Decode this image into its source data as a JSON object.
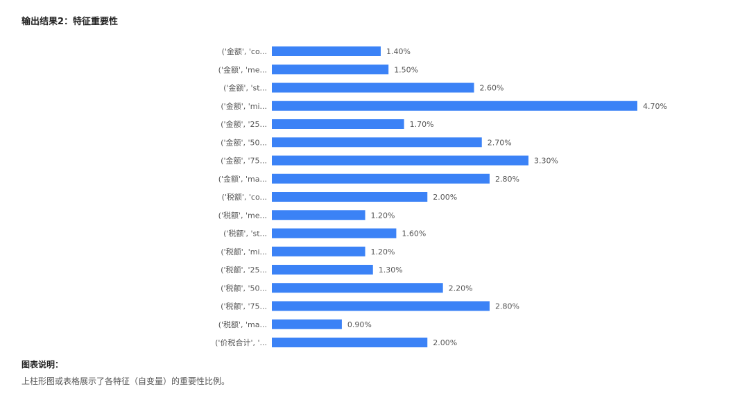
{
  "heading": "输出结果2：特征重要性",
  "chart_data": {
    "type": "bar",
    "orientation": "horizontal",
    "categories": [
      "('金额', 'co...",
      "('金额', 'me...",
      "('金额', 'st...",
      "('金额', 'mi...",
      "('金额', '25...",
      "('金额', '50...",
      "('金额', '75...",
      "('金额', 'ma...",
      "('税额', 'co...",
      "('税额', 'me...",
      "('税额', 'st...",
      "('税额', 'mi...",
      "('税额', '25...",
      "('税额', '50...",
      "('税额', '75...",
      "('税额', 'ma...",
      "('价税合计', '..."
    ],
    "values": [
      1.4,
      1.5,
      2.6,
      4.7,
      1.7,
      2.7,
      3.3,
      2.8,
      2.0,
      1.2,
      1.6,
      1.2,
      1.3,
      2.2,
      2.8,
      0.9,
      2.0
    ],
    "value_labels": [
      "1.40%",
      "1.50%",
      "2.60%",
      "4.70%",
      "1.70%",
      "2.70%",
      "3.30%",
      "2.80%",
      "2.00%",
      "1.20%",
      "1.60%",
      "1.20%",
      "1.30%",
      "2.20%",
      "2.80%",
      "0.90%",
      "2.00%"
    ],
    "unit": "%",
    "xlim": [
      0,
      4.7
    ],
    "grid": false,
    "bar_color": "#3b82f6"
  },
  "caption": {
    "heading": "图表说明：",
    "text": "上柱形图或表格展示了各特征（自变量）的重要性比例。"
  }
}
